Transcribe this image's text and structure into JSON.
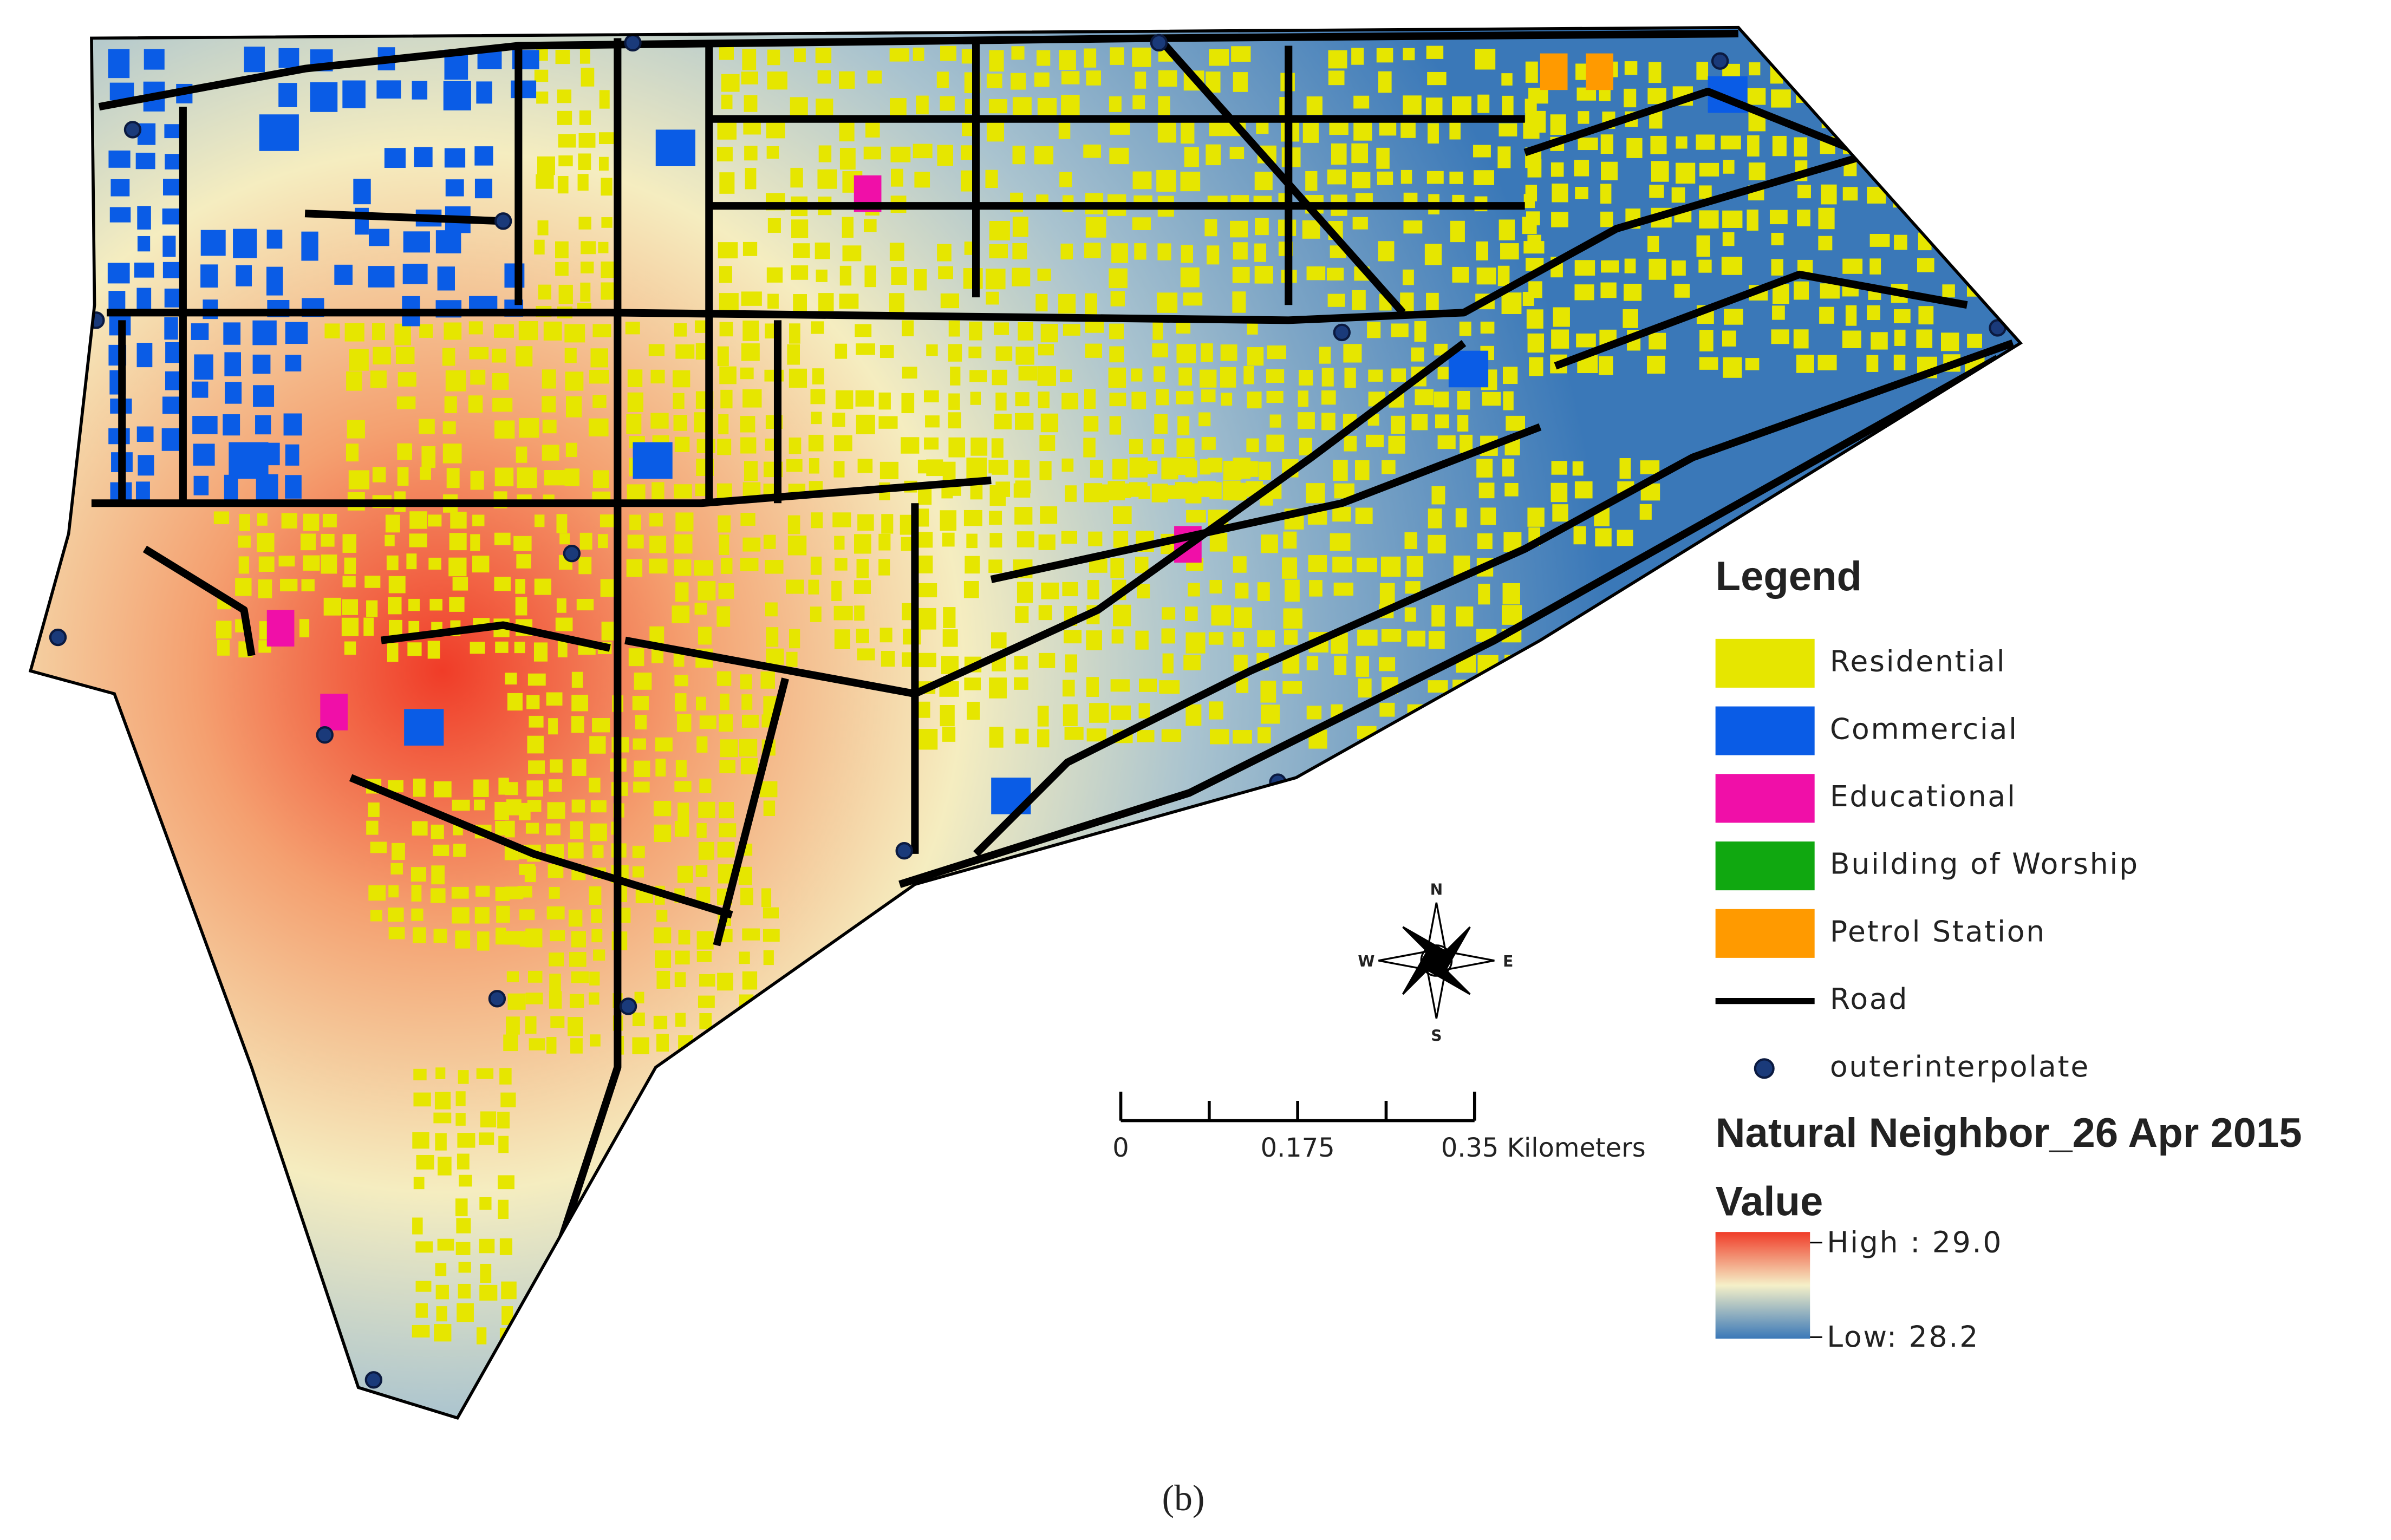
{
  "map": {
    "caption": "(b)",
    "legend": {
      "title": "Legend",
      "items": [
        {
          "label": "Residential",
          "color": "#e6e600",
          "symbol": "patch"
        },
        {
          "label": "Commercial",
          "color": "#0a5ce6",
          "symbol": "patch"
        },
        {
          "label": "Educational",
          "color": "#f00fa8",
          "symbol": "patch"
        },
        {
          "label": "Building of Worship",
          "color": "#10a810",
          "symbol": "patch"
        },
        {
          "label": "Petrol Station",
          "color": "#ff9a00",
          "symbol": "patch"
        },
        {
          "label": "Road",
          "color": "#000000",
          "symbol": "line"
        },
        {
          "label": "outerinterpolate",
          "color": "#1a3a7a",
          "symbol": "point"
        }
      ]
    },
    "raster": {
      "title": "Natural Neighbor_26 Apr 2015",
      "subtitle": "Value",
      "high_label": "High : 29.0",
      "low_label": "Low: 28.2",
      "high_color": "#f03c28",
      "low_color": "#3a78b8"
    },
    "scale_bar": {
      "labels": [
        "0",
        "0.175",
        "0.35 Kilometers"
      ]
    },
    "north_arrow": {
      "n": "N",
      "s": "S",
      "e": "E",
      "w": "W"
    }
  }
}
